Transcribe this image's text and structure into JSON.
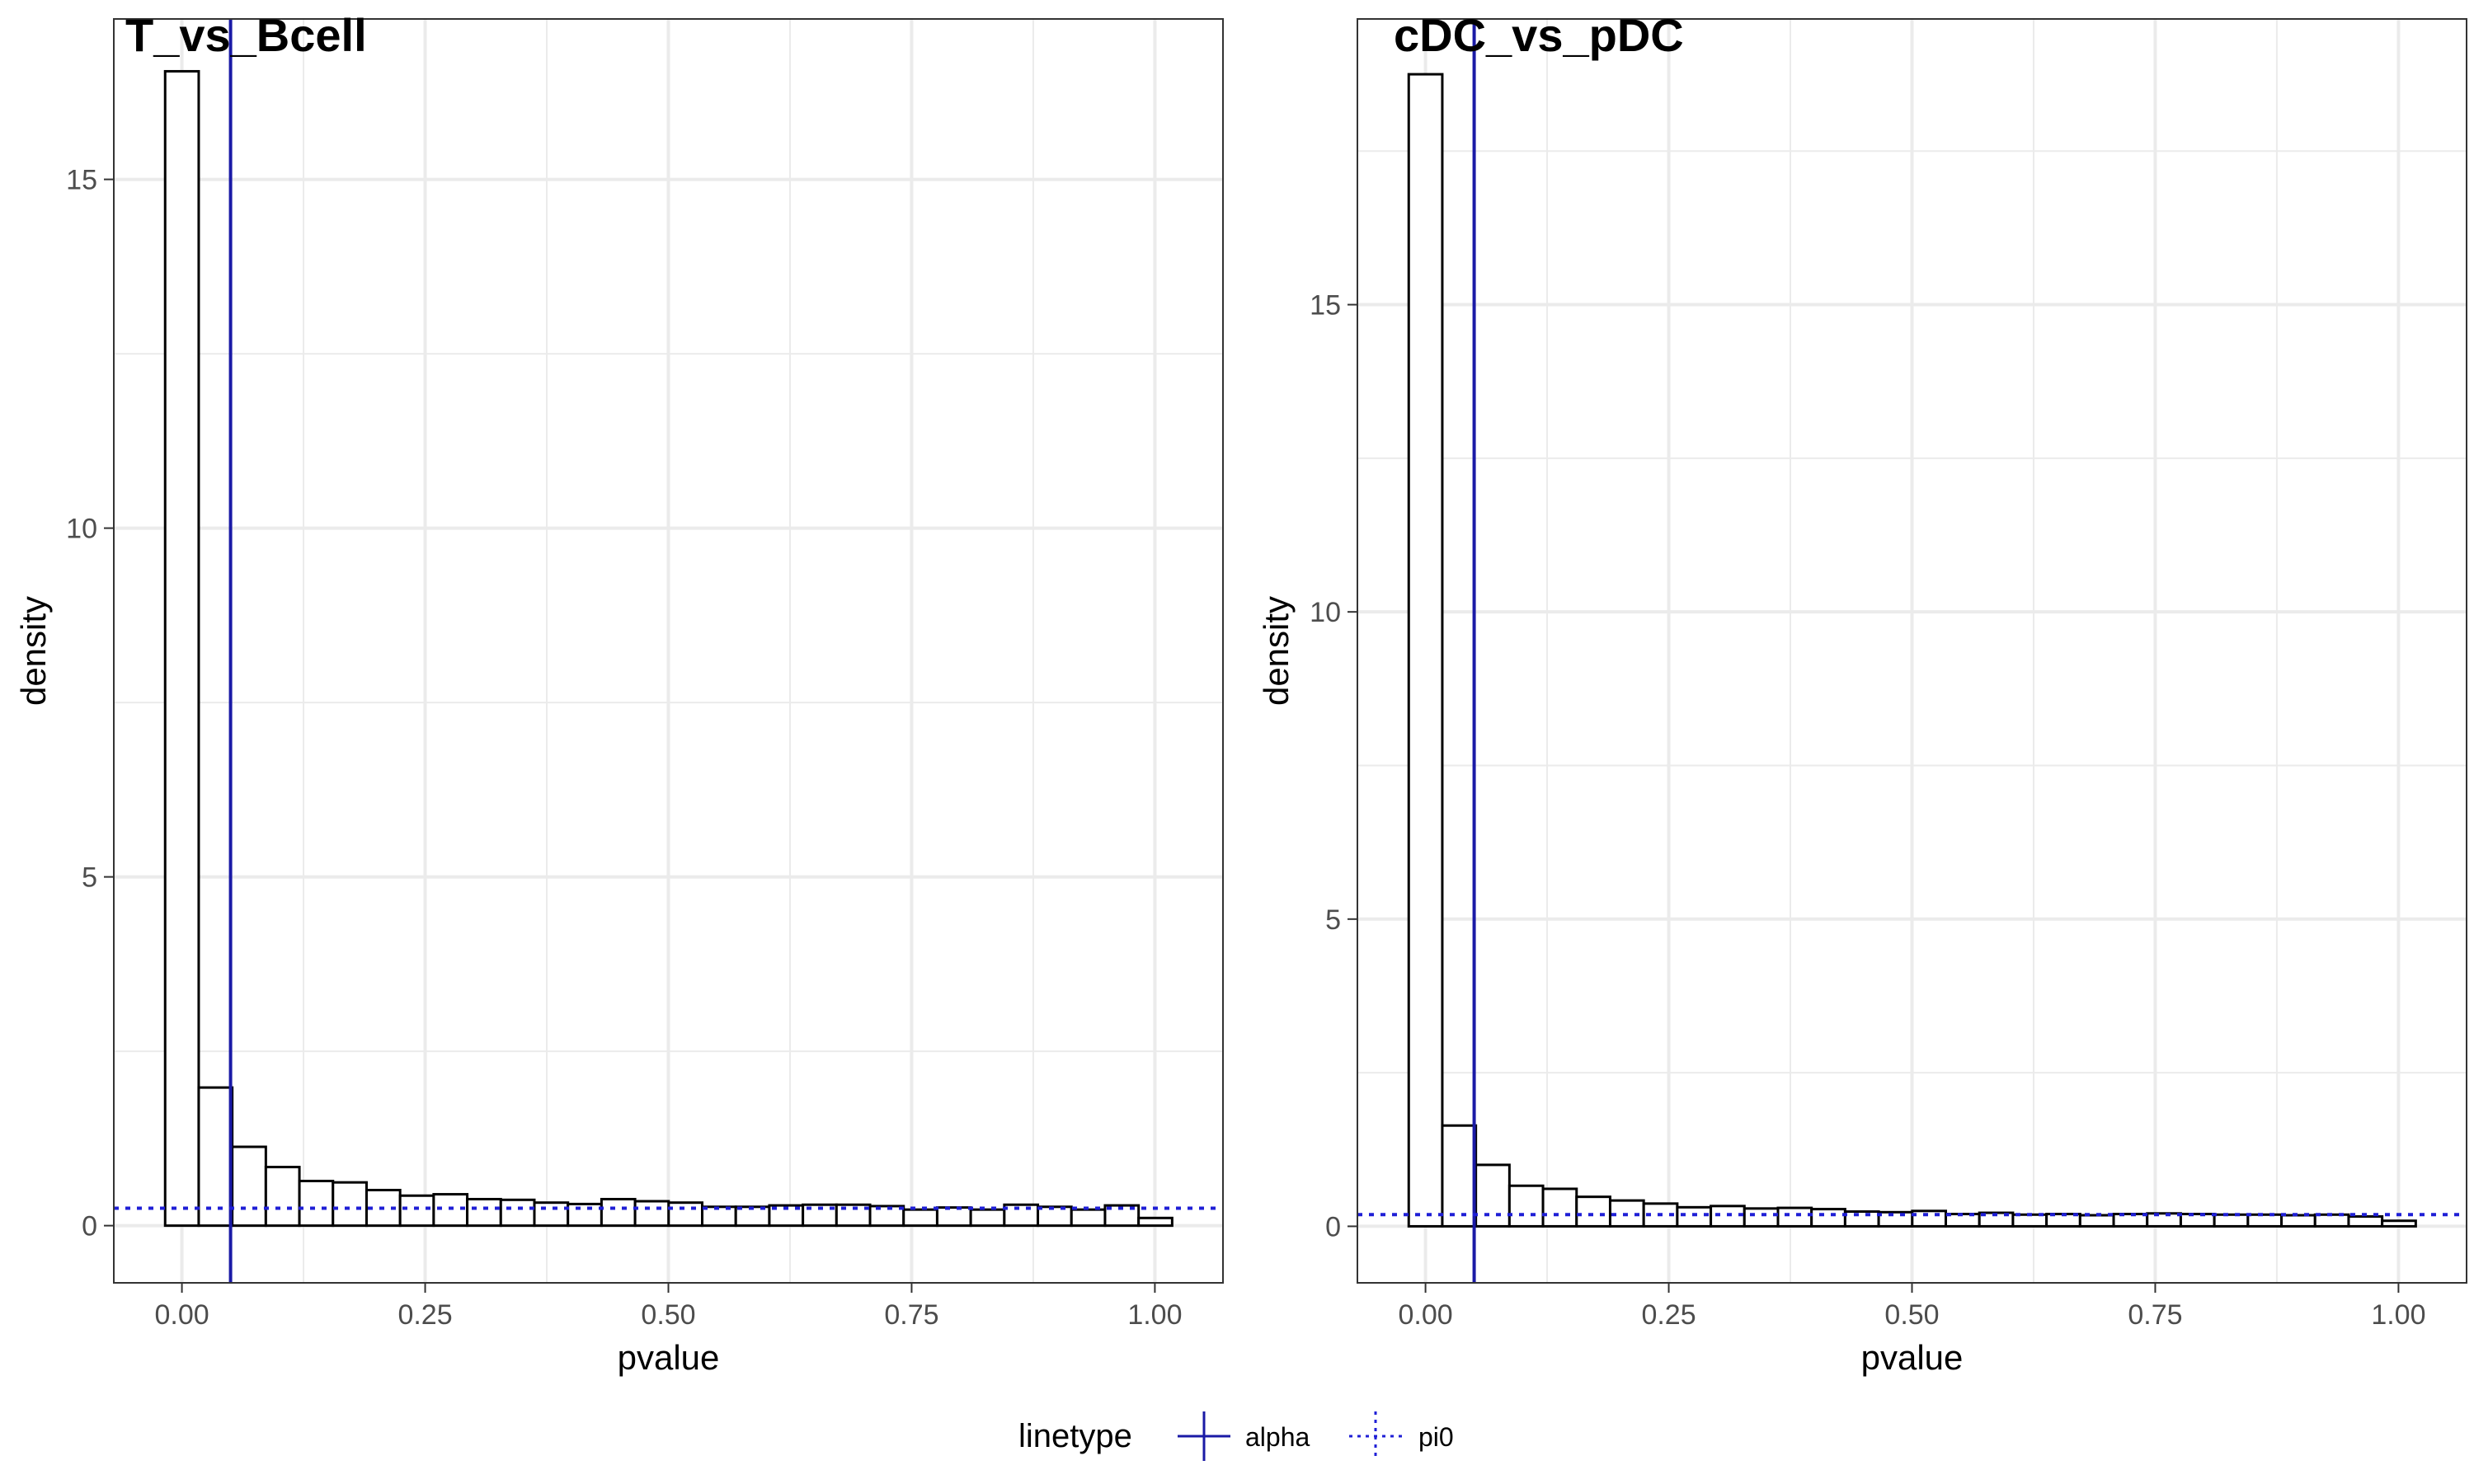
{
  "chart_data": [
    {
      "type": "bar",
      "title": "T_vs_Bcell",
      "xlabel": "pvalue",
      "ylabel": "density",
      "xlim": [
        -0.07,
        1.07
      ],
      "ylim": [
        -0.82,
        17.3
      ],
      "x_ticks": [
        0,
        0.25,
        0.5,
        0.75,
        1
      ],
      "x_tick_labels": [
        "0.00",
        "0.25",
        "0.50",
        "0.75",
        "1.00"
      ],
      "y_ticks": [
        0,
        5,
        10,
        15
      ],
      "y_tick_labels": [
        "0",
        "5",
        "10",
        "15"
      ],
      "bin_width": 0.0345,
      "bin_start": -0.01724,
      "values": [
        16.55,
        1.98,
        1.13,
        0.84,
        0.64,
        0.62,
        0.51,
        0.43,
        0.45,
        0.38,
        0.37,
        0.33,
        0.31,
        0.38,
        0.35,
        0.33,
        0.27,
        0.27,
        0.29,
        0.3,
        0.3,
        0.28,
        0.23,
        0.26,
        0.23,
        0.3,
        0.27,
        0.23,
        0.29,
        0.11
      ],
      "alpha": 0.05,
      "pi0": 0.25,
      "grid": true
    },
    {
      "type": "bar",
      "title": "cDC_vs_pDC",
      "xlabel": "pvalue",
      "ylabel": "density",
      "xlim": [
        -0.07,
        1.07
      ],
      "ylim": [
        -0.92,
        19.65
      ],
      "x_ticks": [
        0,
        0.25,
        0.5,
        0.75,
        1
      ],
      "x_tick_labels": [
        "0.00",
        "0.25",
        "0.50",
        "0.75",
        "1.00"
      ],
      "y_ticks": [
        0,
        5,
        10,
        15
      ],
      "y_tick_labels": [
        "0",
        "5",
        "10",
        "15"
      ],
      "bin_width": 0.0345,
      "bin_start": -0.01724,
      "values": [
        18.75,
        1.64,
        1.0,
        0.66,
        0.61,
        0.48,
        0.42,
        0.37,
        0.31,
        0.33,
        0.29,
        0.3,
        0.28,
        0.24,
        0.23,
        0.25,
        0.2,
        0.22,
        0.19,
        0.2,
        0.18,
        0.2,
        0.21,
        0.2,
        0.19,
        0.19,
        0.18,
        0.19,
        0.16,
        0.09
      ],
      "alpha": 0.05,
      "pi0": 0.19,
      "grid": true
    }
  ],
  "legend": {
    "title": "linetype",
    "items": [
      {
        "label": "alpha",
        "style": "solid"
      },
      {
        "label": "pi0",
        "style": "dotted"
      }
    ],
    "position": "bottom"
  },
  "colors": {
    "bar_fill": "#ffffff",
    "bar_outline": "#000000",
    "alpha_line": "#1a1aa6",
    "pi0_line": "#1f1fd6",
    "grid": "#ebebeb",
    "panel_border": "#333333"
  }
}
